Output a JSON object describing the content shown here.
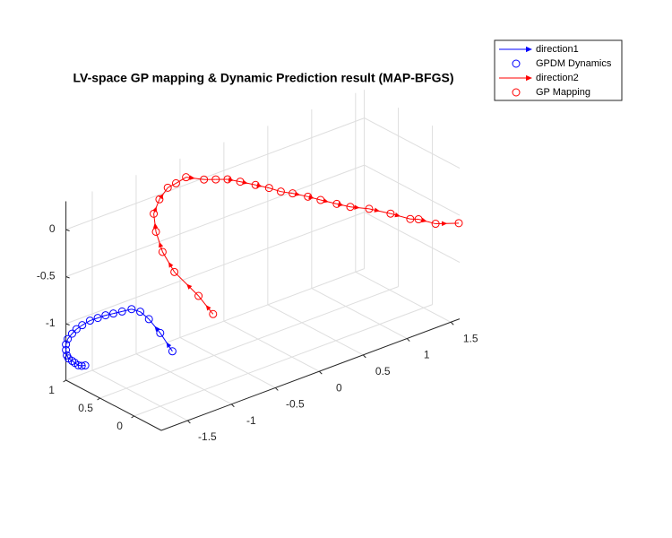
{
  "chart_data": {
    "type": "line3d",
    "title": "LV-space GP mapping & Dynamic Prediction result (MAP-BFGS)",
    "xlim": [
      -1.8,
      1.6
    ],
    "ylim": [
      -0.4,
      1
    ],
    "zlim": [
      -1.6,
      0.3
    ],
    "xticks": [
      -1.5,
      -1,
      -0.5,
      0,
      0.5,
      1,
      1.5
    ],
    "yticks": [
      0,
      0.5,
      1
    ],
    "zticks": [
      -1,
      -0.5,
      0
    ],
    "grid": true,
    "legend": "outside-top-right",
    "series": [
      {
        "name": "direction1",
        "marker_name": "GPDM Dynamics",
        "color": "#0000ff",
        "x": [
          -1.13,
          -1.23,
          -1.32,
          -1.38,
          -1.44,
          -1.51,
          -1.57,
          -1.62,
          -1.67,
          -1.72,
          -1.77,
          -1.68,
          -1.73,
          -1.78,
          -1.8,
          -1.8,
          -1.79,
          -1.77,
          -1.73,
          -1.7,
          -1.66,
          -1.62,
          -1.58
        ],
        "y": [
          0.3,
          0.35,
          0.4,
          0.45,
          0.5,
          0.55,
          0.6,
          0.65,
          0.7,
          0.75,
          0.8,
          1,
          1,
          1,
          1,
          1,
          1,
          1,
          1,
          1,
          1,
          1,
          1
        ],
        "z": [
          -1.26,
          -1.05,
          -0.89,
          -0.81,
          -0.78,
          -0.8,
          -0.82,
          -0.84,
          -0.87,
          -0.9,
          -0.95,
          -1.1,
          -1.13,
          -1.17,
          -1.22,
          -1.28,
          -1.34,
          -1.38,
          -1.42,
          -1.45,
          -1.49,
          -1.51,
          -1.52
        ]
      },
      {
        "name": "direction2",
        "marker_name": "GP Mapping",
        "color": "#ff0000",
        "x": [
          -1.21,
          -1.22,
          -1.34,
          -1.32,
          -1.24,
          -1.11,
          -0.89,
          -0.64,
          -0.6,
          -0.54,
          -0.39,
          -0.31,
          -0.23,
          -0.14,
          -0.02,
          0.08,
          0.16,
          0.24,
          0.36,
          0.45,
          0.58,
          0.68,
          0.84,
          1.03,
          1.2,
          1.24,
          1.38,
          1.59
        ],
        "y": [
          -0.4,
          -0.2,
          0,
          0.2,
          0.4,
          0.6,
          0.8,
          1,
          0.93,
          0.86,
          0.79,
          0.72,
          0.65,
          0.58,
          0.51,
          0.44,
          0.37,
          0.3,
          0.23,
          0.16,
          0.09,
          0.02,
          -0.05,
          -0.12,
          -0.19,
          -0.26,
          -0.33,
          -0.4
        ],
        "z": [
          -0.57,
          -0.45,
          -0.23,
          -0.1,
          0.01,
          0.08,
          0.08,
          0.04,
          0.1,
          0.17,
          0.12,
          0.12,
          0.12,
          0.09,
          0.04,
          0,
          -0.04,
          -0.06,
          -0.11,
          -0.15,
          -0.21,
          -0.25,
          -0.3,
          -0.39,
          -0.48,
          -0.47,
          -0.54,
          -0.58
        ]
      }
    ]
  }
}
